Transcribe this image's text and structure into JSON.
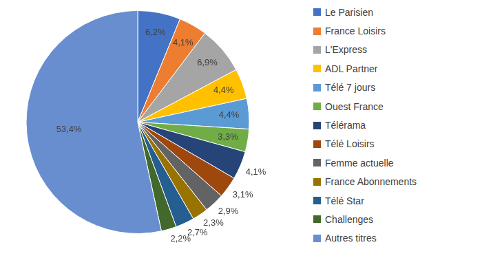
{
  "chart_data": {
    "type": "pie",
    "categories": [
      "Le Parisien",
      "France Loisirs",
      "L'Express",
      "ADL Partner",
      "Télé 7 jours",
      "Ouest France",
      "Télérama",
      "Télé Loisirs",
      "Femme actuelle",
      "France Abonnements",
      "Télé Star",
      "Challenges",
      "Autres titres"
    ],
    "values": [
      6.2,
      4.1,
      6.9,
      4.4,
      4.4,
      3.3,
      4.1,
      3.1,
      2.9,
      2.3,
      2.7,
      2.2,
      53.4
    ],
    "value_labels": [
      "6,2%",
      "4,1%",
      "6,9%",
      "4,4%",
      "4,4%",
      "3,3%",
      "4,1%",
      "3,1%",
      "2,9%",
      "2,3%",
      "2,7%",
      "2,2%",
      "53,4%"
    ],
    "colors": [
      "#4472c4",
      "#ed7d31",
      "#a5a5a5",
      "#ffc000",
      "#5b9bd5",
      "#70ad47",
      "#264478",
      "#9e480e",
      "#636363",
      "#997300",
      "#255e91",
      "#43682b",
      "#698ed0"
    ],
    "data_labels": true,
    "legend": "right"
  }
}
